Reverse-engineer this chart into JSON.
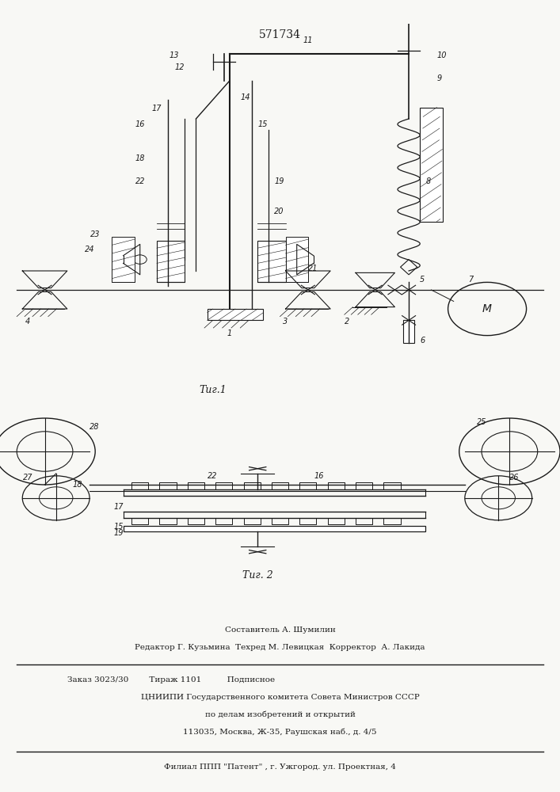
{
  "title": "571734",
  "fig1_label": "Τиг.1",
  "fig2_label": "Τиг. 2",
  "footer_lines": [
    "Составитель А. Шумилин",
    "Редактор Г. Кузьмина  Техред М. Левицкая  Корректор  А. Лакида",
    "Заказ 3023/30        Тираж 1101          Подписное",
    "ЦНИИПИ Государственного комитета Совета Министров СССР",
    "по делам изобретений и открытий",
    "113035, Москва, Ж-35, Раушская наб., д. 4/5",
    "Филиал ППП \"Патент\" , г. Ужгород. ул. Проектная, 4"
  ],
  "bg_color": "#f8f8f5",
  "line_color": "#1a1a1a"
}
